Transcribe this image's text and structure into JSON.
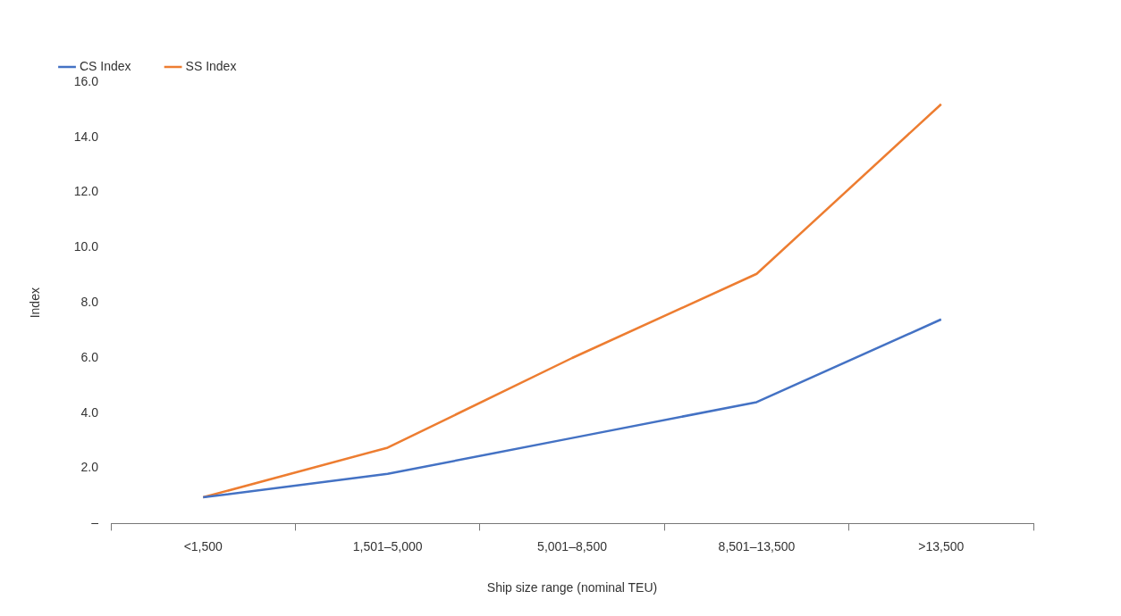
{
  "chart_data": {
    "type": "line",
    "xlabel": "Ship size range (nominal TEU)",
    "ylabel": "Index",
    "categories": [
      "<1,500",
      "1,501–5,000",
      "5,001–8,500",
      "8,501–13,500",
      ">13,500"
    ],
    "series": [
      {
        "name": "CS Index",
        "color": "#4472c4",
        "values": [
          0.95,
          1.8,
          3.1,
          4.4,
          7.4
        ]
      },
      {
        "name": "SS Index",
        "color": "#ed7d31",
        "values": [
          0.95,
          2.75,
          6.0,
          9.05,
          15.2
        ]
      }
    ],
    "ylim": [
      0,
      16
    ],
    "yticks": [
      {
        "value": 0,
        "label": "–"
      },
      {
        "value": 2,
        "label": "2.0"
      },
      {
        "value": 4,
        "label": "4.0"
      },
      {
        "value": 6,
        "label": "6.0"
      },
      {
        "value": 8,
        "label": "8.0"
      },
      {
        "value": 10,
        "label": "10.0"
      },
      {
        "value": 12,
        "label": "12.0"
      },
      {
        "value": 14,
        "label": "14.0"
      },
      {
        "value": 16,
        "label": "16.0"
      }
    ],
    "grid": false,
    "legend": "top left",
    "marker": "none",
    "line_style": "solid"
  }
}
